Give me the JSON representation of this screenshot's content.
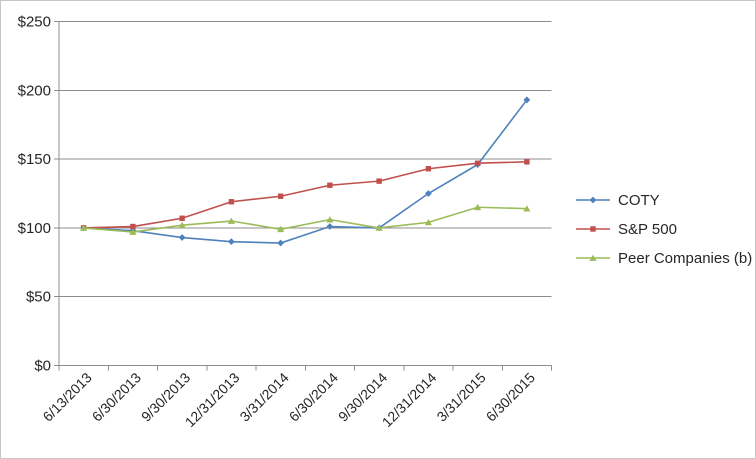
{
  "chart_data": {
    "type": "line",
    "title": "",
    "x_categories": [
      "6/13/2013",
      "6/30/2013",
      "9/30/2013",
      "12/31/2013",
      "3/31/2014",
      "6/30/2014",
      "9/30/2014",
      "12/31/2014",
      "3/31/2015",
      "6/30/2015"
    ],
    "y_axis": {
      "min": 0,
      "max": 250,
      "step": 50,
      "tick_labels": [
        "$0",
        "$50",
        "$100",
        "$150",
        "$200",
        "$250"
      ]
    },
    "grid": true,
    "legend_position": "right",
    "colors": {
      "gridline": "#8c8c8c",
      "axis_text": "#262626",
      "background": "#ffffff",
      "frame_border": "#c6c6c6"
    },
    "series": [
      {
        "name": "COTY",
        "color": "#4F81BD",
        "marker": "diamond",
        "values": [
          100,
          98,
          93,
          90,
          89,
          101,
          100,
          125,
          146,
          193
        ]
      },
      {
        "name": "S&P 500",
        "color": "#C0504D",
        "marker": "square",
        "values": [
          100,
          101,
          107,
          119,
          123,
          131,
          134,
          143,
          147,
          148
        ]
      },
      {
        "name": "Peer Companies (b)",
        "color": "#9BBB59",
        "marker": "triangle",
        "values": [
          100,
          97,
          102,
          105,
          99,
          106,
          100,
          104,
          115,
          114
        ]
      }
    ]
  }
}
